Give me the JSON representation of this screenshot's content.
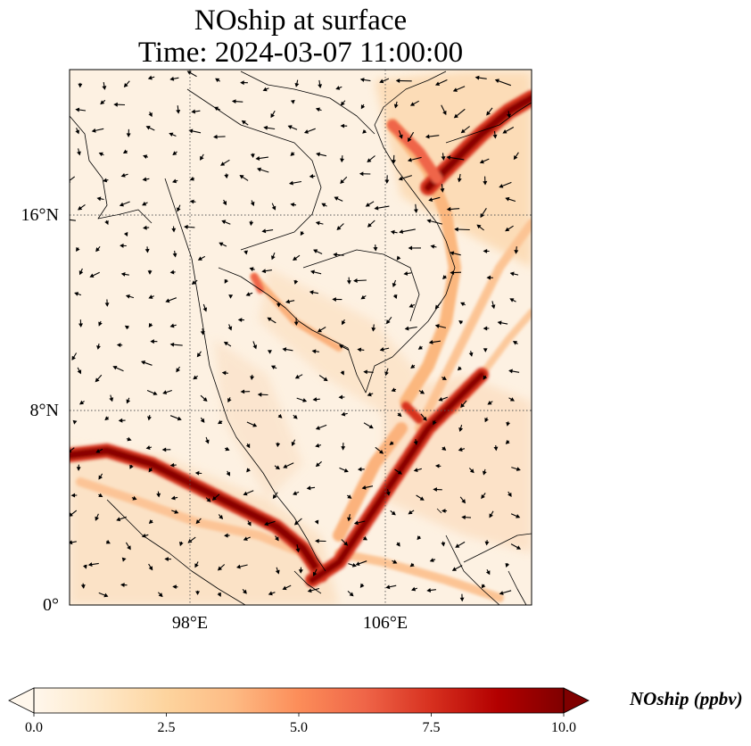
{
  "title_line1": "NOship at surface",
  "title_line2": "Time: 2024-03-07 11:00:00",
  "lat_labels": [
    "16°N",
    "8°N",
    "0°"
  ],
  "lon_labels": [
    "98°E",
    "106°E"
  ],
  "colorbar": {
    "label": "NOship (ppbv)",
    "ticks": [
      "0.0",
      "2.5",
      "5.0",
      "7.5",
      "10.0"
    ],
    "range": [
      0,
      10
    ],
    "colormap": "OrRd",
    "colors": [
      "#fff7ec",
      "#fee8c8",
      "#fdd49e",
      "#fdbb84",
      "#fc8d59",
      "#ef6548",
      "#d7301f",
      "#b30000",
      "#7f0000"
    ]
  },
  "map": {
    "lon_range": [
      93,
      112
    ],
    "lat_range": [
      0,
      22
    ],
    "gridlines": "dotted",
    "vectors": "wind arrows"
  }
}
